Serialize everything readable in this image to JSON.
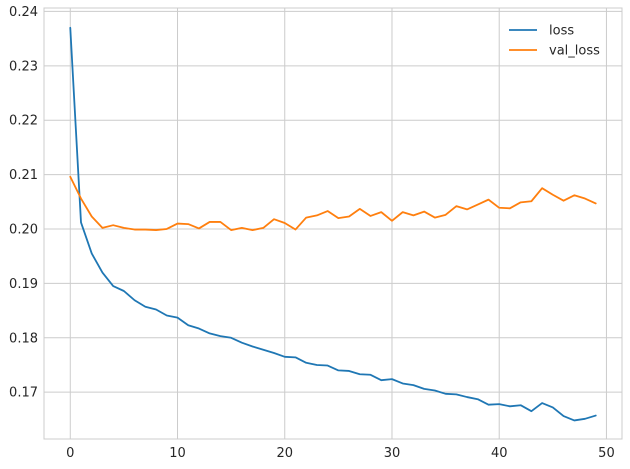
{
  "chart_data": {
    "type": "line",
    "title": "",
    "xlabel": "",
    "ylabel": "",
    "x": [
      0,
      1,
      2,
      3,
      4,
      5,
      6,
      7,
      8,
      9,
      10,
      11,
      12,
      13,
      14,
      15,
      16,
      17,
      18,
      19,
      20,
      21,
      22,
      23,
      24,
      25,
      26,
      27,
      28,
      29,
      30,
      31,
      32,
      33,
      34,
      35,
      36,
      37,
      38,
      39,
      40,
      41,
      42,
      43,
      44,
      45,
      46,
      47,
      48,
      49
    ],
    "series": [
      {
        "name": "loss",
        "color": "#1f77b4",
        "values": [
          0.237,
          0.2012,
          0.1955,
          0.192,
          0.1895,
          0.1886,
          0.1869,
          0.1857,
          0.1852,
          0.1841,
          0.1837,
          0.1823,
          0.1817,
          0.1808,
          0.1803,
          0.18,
          0.1791,
          0.1784,
          0.1778,
          0.1772,
          0.1765,
          0.1764,
          0.1754,
          0.175,
          0.1749,
          0.174,
          0.1739,
          0.1733,
          0.1732,
          0.1722,
          0.1724,
          0.1716,
          0.1713,
          0.1706,
          0.1703,
          0.1697,
          0.1696,
          0.1691,
          0.1687,
          0.1677,
          0.1678,
          0.1674,
          0.1676,
          0.1665,
          0.168,
          0.1672,
          0.1656,
          0.1648,
          0.1651,
          0.1657
        ]
      },
      {
        "name": "val_loss",
        "color": "#ff7f0e",
        "values": [
          0.2096,
          0.2056,
          0.2023,
          0.2002,
          0.2007,
          0.2002,
          0.1999,
          0.1999,
          0.1998,
          0.2,
          0.201,
          0.2009,
          0.2001,
          0.2013,
          0.2013,
          0.1998,
          0.2002,
          0.1998,
          0.2002,
          0.2018,
          0.2011,
          0.1999,
          0.2021,
          0.2025,
          0.2033,
          0.202,
          0.2023,
          0.2037,
          0.2024,
          0.2031,
          0.2015,
          0.2031,
          0.2025,
          0.2032,
          0.2021,
          0.2026,
          0.2042,
          0.2036,
          0.2045,
          0.2054,
          0.2039,
          0.2038,
          0.2049,
          0.2051,
          0.2075,
          0.2063,
          0.2052,
          0.2062,
          0.2056,
          0.2047
        ]
      }
    ],
    "xlim": [
      -2.45,
      51.45
    ],
    "ylim": [
      0.16139,
      0.24063
    ],
    "xticks": [
      0,
      10,
      20,
      30,
      40,
      50
    ],
    "yticks": [
      0.17,
      0.18,
      0.19,
      0.2,
      0.21,
      0.22,
      0.23,
      0.24
    ],
    "xtick_labels": [
      "0",
      "10",
      "20",
      "30",
      "40",
      "50"
    ],
    "ytick_labels": [
      "0.17",
      "0.18",
      "0.19",
      "0.20",
      "0.21",
      "0.22",
      "0.23",
      "0.24"
    ],
    "grid": true,
    "legend_position": "top-right"
  }
}
